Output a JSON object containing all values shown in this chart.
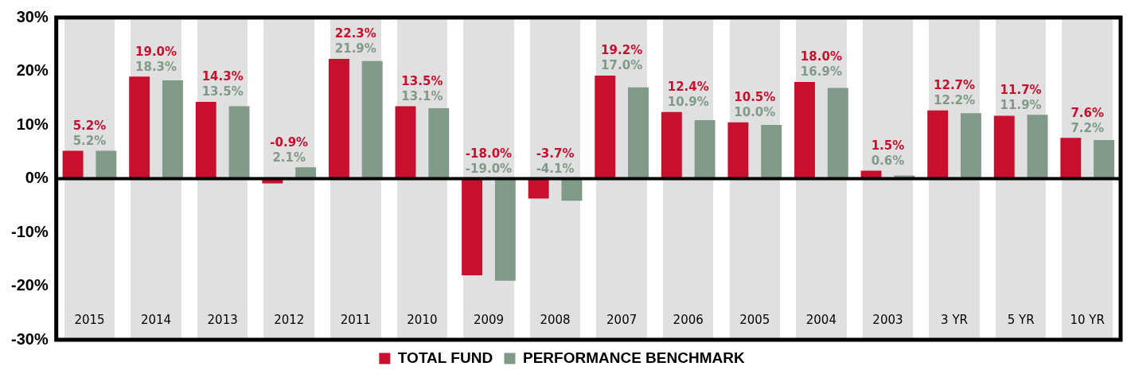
{
  "chart_data": {
    "type": "bar",
    "categories": [
      "2015",
      "2014",
      "2013",
      "2012",
      "2011",
      "2010",
      "2009",
      "2008",
      "2007",
      "2006",
      "2005",
      "2004",
      "2003",
      "3 YR",
      "5 YR",
      "10 YR"
    ],
    "series": [
      {
        "name": "TOTAL FUND",
        "color": "#c8102e",
        "values": [
          5.2,
          19.0,
          14.3,
          -0.9,
          22.3,
          13.5,
          -18.0,
          -3.7,
          19.2,
          12.4,
          10.5,
          18.0,
          1.5,
          12.7,
          11.7,
          7.6
        ],
        "value_labels": [
          "5.2%",
          "19.0%",
          "14.3%",
          "-0.9%",
          "22.3%",
          "13.5%",
          "-18.0%",
          "-3.7%",
          "19.2%",
          "12.4%",
          "10.5%",
          "18.0%",
          "1.5%",
          "12.7%",
          "11.7%",
          "7.6%"
        ]
      },
      {
        "name": "PERFORMANCE BENCHMARK",
        "color": "#7f9a87",
        "values": [
          5.2,
          18.3,
          13.5,
          2.1,
          21.9,
          13.1,
          -19.0,
          -4.1,
          17.0,
          10.9,
          10.0,
          16.9,
          0.6,
          12.2,
          11.9,
          7.2
        ],
        "value_labels": [
          "5.2%",
          "18.3%",
          "13.5%",
          "2.1%",
          "21.9%",
          "13.1%",
          "-19.0%",
          "-4.1%",
          "17.0%",
          "10.9%",
          "10.0%",
          "16.9%",
          "0.6%",
          "12.2%",
          "11.9%",
          "7.2%"
        ]
      }
    ],
    "ylim": [
      -30,
      30
    ],
    "yticks": [
      {
        "value": -30,
        "label": "-30%"
      },
      {
        "value": -20,
        "label": "-20%"
      },
      {
        "value": -10,
        "label": "-10%"
      },
      {
        "value": 0,
        "label": "0%"
      },
      {
        "value": 10,
        "label": "10%"
      },
      {
        "value": 20,
        "label": "20%"
      },
      {
        "value": 30,
        "label": "30%"
      }
    ],
    "ref_lines": [
      {
        "axis": "y",
        "value": 0,
        "color": "#000000"
      }
    ],
    "grid": false,
    "legend": "bottom"
  }
}
